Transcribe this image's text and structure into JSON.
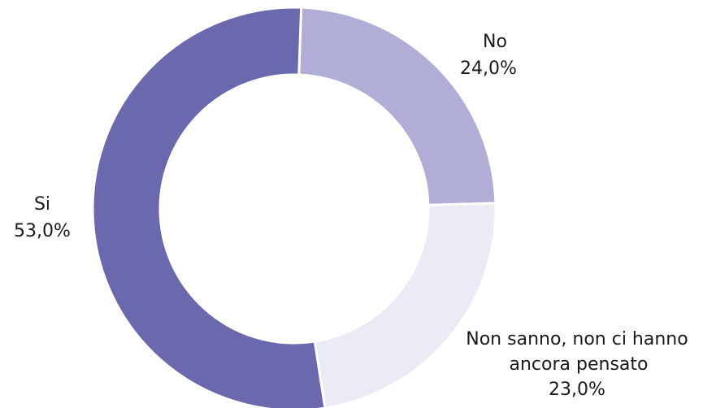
{
  "chart_data": {
    "type": "pie",
    "variant": "donut",
    "title": "",
    "start_angle_deg": 2,
    "direction": "clockwise",
    "slices": [
      {
        "label_lines": [
          "No"
        ],
        "value_label": "24,0%",
        "value": 24.0,
        "color": "#b0aed6"
      },
      {
        "label_lines": [
          "Non sanno, non ci hanno",
          "ancora pensato"
        ],
        "value_label": "23,0%",
        "value": 23.0,
        "color": "#ebebf5"
      },
      {
        "label_lines": [
          "Si"
        ],
        "value_label": "53,0%",
        "value": 53.0,
        "color": "#6b68ad"
      }
    ],
    "slice_separator_color": "#ffffff",
    "legend": "none",
    "data_labels": "outside"
  }
}
